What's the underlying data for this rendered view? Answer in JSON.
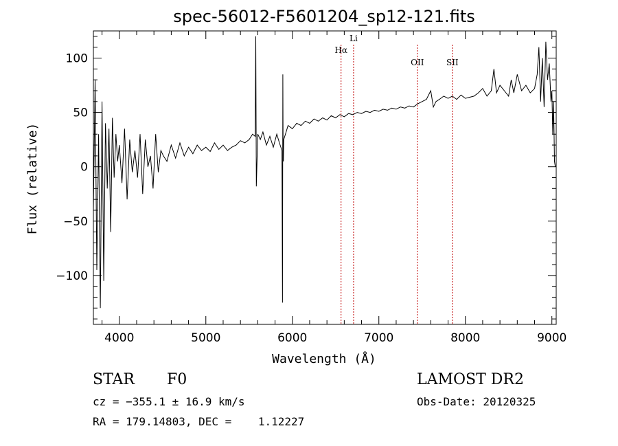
{
  "chart_data": {
    "type": "line",
    "title": "spec-56012-F5601204_sp12-121.fits",
    "xlabel": "Wavelength (Å)",
    "ylabel": "Flux (relative)",
    "xlim": [
      3700,
      9050
    ],
    "ylim": [
      -145,
      125
    ],
    "xticks": [
      4000,
      5000,
      6000,
      7000,
      8000,
      9000
    ],
    "yticks": [
      -100,
      -50,
      0,
      50,
      100
    ],
    "x_tick_labels": [
      "4000",
      "5000",
      "6000",
      "7000",
      "8000",
      "9000"
    ],
    "y_tick_labels": [
      "−100",
      "−50",
      "0",
      "50",
      "100"
    ],
    "line_color": "#000000",
    "marker_color": "#c00000",
    "spectral_lines": [
      {
        "label": "Hα",
        "x": 6563
      },
      {
        "label": "Li",
        "x": 6708
      },
      {
        "label": "OII",
        "x": 7445
      },
      {
        "label": "SII",
        "x": 7850
      }
    ],
    "series": [
      {
        "x": [
          3700,
          3720,
          3740,
          3760,
          3780,
          3800,
          3820,
          3840,
          3860,
          3880,
          3900,
          3920,
          3940,
          3960,
          3980,
          4000,
          4030,
          4060,
          4090,
          4120,
          4150,
          4180,
          4210,
          4240,
          4270,
          4300,
          4330,
          4360,
          4390,
          4420,
          4450,
          4480,
          4510,
          4550,
          4600,
          4650,
          4700,
          4750,
          4800,
          4850,
          4900,
          4950,
          5000,
          5050,
          5100,
          5150,
          5200,
          5250,
          5300,
          5350,
          5400,
          5450,
          5500,
          5540,
          5570,
          5577,
          5584,
          5600,
          5630,
          5660,
          5700,
          5740,
          5780,
          5820,
          5850,
          5880,
          5886,
          5890,
          5893,
          5896,
          5900,
          5920,
          5950,
          6000,
          6050,
          6100,
          6150,
          6200,
          6250,
          6300,
          6350,
          6400,
          6450,
          6500,
          6550,
          6600,
          6650,
          6700,
          6750,
          6800,
          6850,
          6900,
          6950,
          7000,
          7050,
          7100,
          7150,
          7200,
          7250,
          7300,
          7350,
          7400,
          7450,
          7500,
          7550,
          7600,
          7630,
          7660,
          7700,
          7750,
          7800,
          7850,
          7900,
          7950,
          8000,
          8050,
          8100,
          8150,
          8200,
          8250,
          8300,
          8330,
          8360,
          8400,
          8450,
          8500,
          8530,
          8560,
          8600,
          8650,
          8700,
          8750,
          8800,
          8830,
          8850,
          8870,
          8890,
          8910,
          8930,
          8950,
          8970,
          8990,
          9000,
          9010,
          9020,
          9030,
          9040
        ],
        "y": [
          -40,
          80,
          -95,
          30,
          -130,
          60,
          -105,
          40,
          -20,
          35,
          -60,
          45,
          -10,
          30,
          5,
          20,
          -15,
          35,
          -30,
          25,
          -5,
          15,
          -10,
          30,
          -25,
          25,
          0,
          10,
          -20,
          30,
          -5,
          15,
          10,
          5,
          20,
          8,
          22,
          10,
          18,
          12,
          20,
          15,
          18,
          14,
          22,
          16,
          20,
          15,
          18,
          20,
          24,
          22,
          25,
          30,
          28,
          120,
          -18,
          30,
          25,
          32,
          20,
          28,
          18,
          30,
          22,
          15,
          -125,
          85,
          10,
          5,
          25,
          30,
          38,
          35,
          40,
          38,
          42,
          40,
          44,
          42,
          45,
          43,
          47,
          45,
          48,
          46,
          49,
          48,
          50,
          49,
          51,
          50,
          52,
          51,
          53,
          52,
          54,
          53,
          55,
          54,
          56,
          55,
          58,
          60,
          62,
          70,
          55,
          60,
          62,
          65,
          63,
          65,
          62,
          66,
          63,
          64,
          65,
          68,
          72,
          65,
          70,
          90,
          68,
          75,
          70,
          65,
          80,
          68,
          85,
          70,
          75,
          68,
          72,
          85,
          110,
          60,
          100,
          55,
          115,
          80,
          95,
          60,
          70,
          30,
          60,
          5,
          0
        ]
      }
    ]
  },
  "footer": {
    "object_class": "STAR",
    "subclass": "F0",
    "redshift": "cz = −355.1 ± 16.9 km/s",
    "coords": "RA = 179.14803, DEC =    1.12227",
    "survey": "LAMOST DR2",
    "obs_date": "Obs-Date: 20120325"
  }
}
